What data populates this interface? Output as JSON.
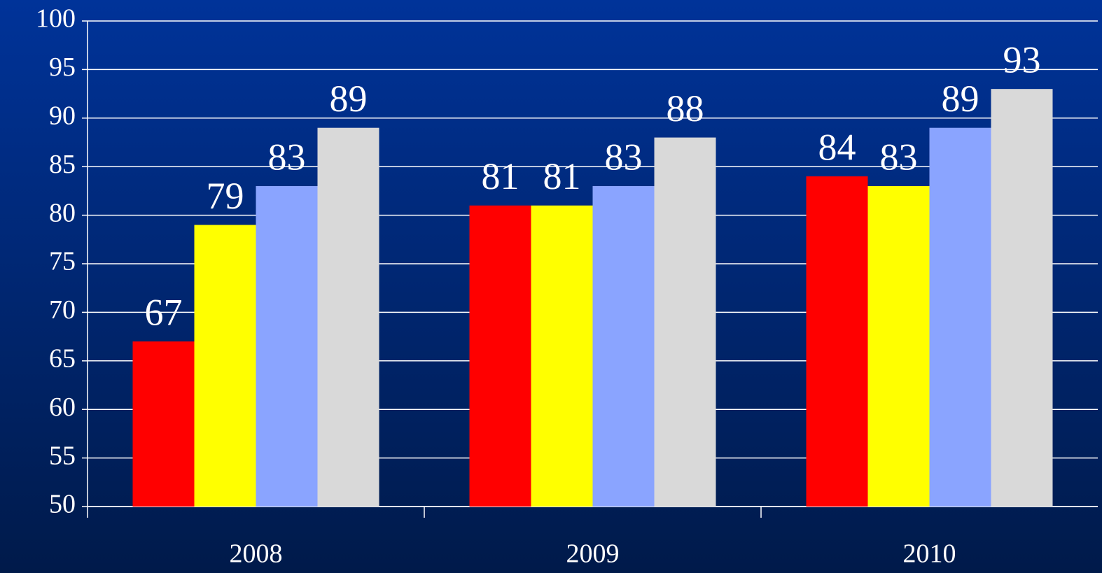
{
  "chart_data": {
    "type": "bar",
    "categories": [
      "2008",
      "2009",
      "2010"
    ],
    "series": [
      {
        "color": "#ff0000",
        "values": [
          67,
          81,
          84
        ]
      },
      {
        "color": "#ffff00",
        "values": [
          79,
          81,
          83
        ]
      },
      {
        "color": "#8aa4ff",
        "values": [
          83,
          83,
          89
        ]
      },
      {
        "color": "#d9d9d9",
        "values": [
          89,
          88,
          93
        ]
      }
    ],
    "ylim": [
      50,
      100
    ],
    "yticks": [
      50,
      55,
      60,
      65,
      70,
      75,
      80,
      85,
      90,
      95,
      100
    ],
    "grid": true,
    "data_labels": true
  }
}
